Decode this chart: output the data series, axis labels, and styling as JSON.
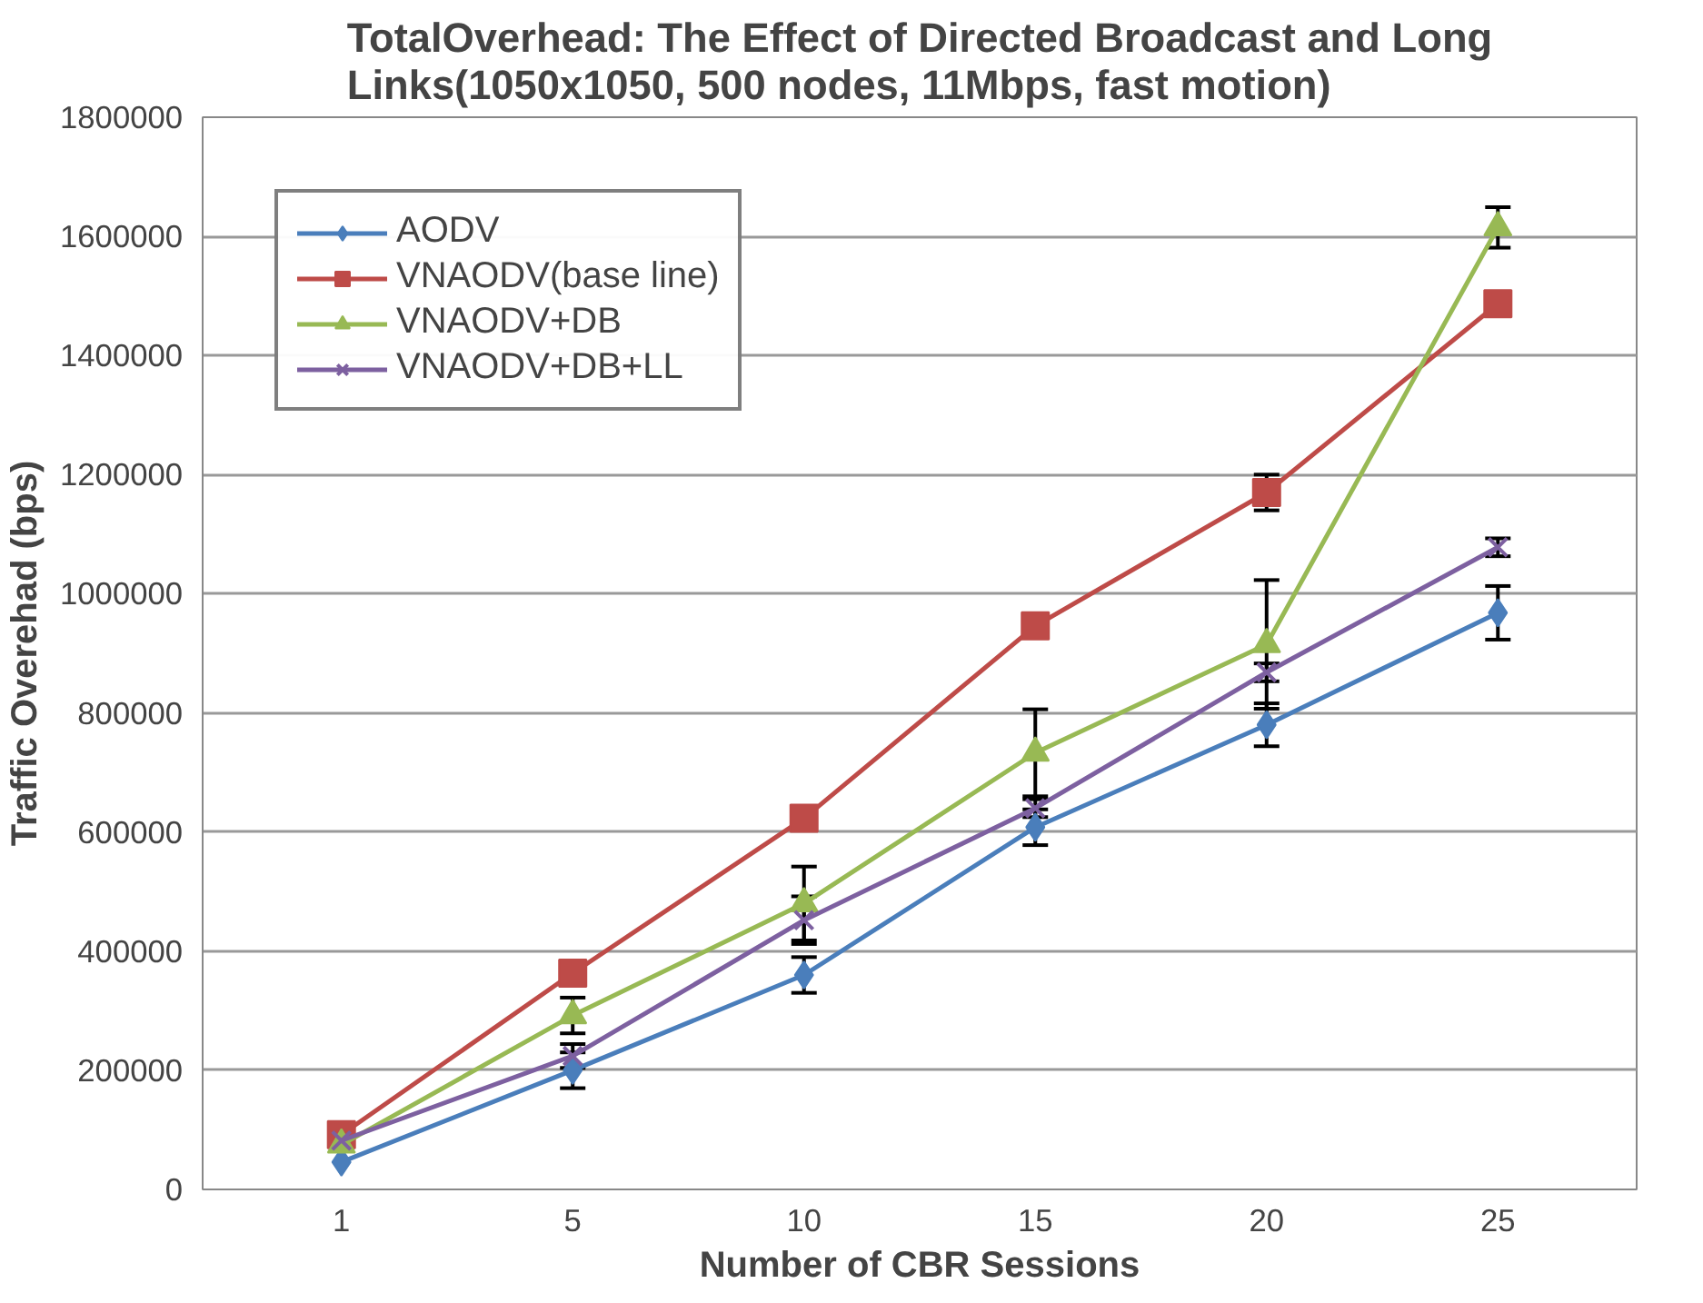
{
  "chart_data": {
    "type": "line",
    "title": "TotalOverhead: The Effect of Directed Broadcast and Long\nLinks(1050x1050, 500 nodes, 11Mbps, fast motion)",
    "xlabel": "Number of CBR Sessions",
    "ylabel": "Traffic Overehad (bps)",
    "categories": [
      "1",
      "5",
      "10",
      "15",
      "20",
      "25"
    ],
    "ylim": [
      0,
      1800000
    ],
    "yticks": [
      0,
      200000,
      400000,
      600000,
      800000,
      1000000,
      1200000,
      1400000,
      1600000,
      1800000
    ],
    "grid": "y",
    "legend": "top left",
    "series": [
      {
        "name": "AODV",
        "color": "#4a7ebb",
        "marker": "diamond",
        "values": [
          46000,
          200000,
          360000,
          608000,
          780000,
          968000
        ],
        "errors": [
          null,
          30000,
          30000,
          30000,
          36000,
          45000
        ]
      },
      {
        "name": "VNAODV(base line)",
        "color": "#be4b48",
        "marker": "square",
        "values": [
          92000,
          363000,
          623000,
          946000,
          1170000,
          1487000
        ],
        "errors": [
          null,
          null,
          null,
          null,
          30000,
          null
        ]
      },
      {
        "name": "VNAODV+DB",
        "color": "#98b954",
        "marker": "triangle",
        "values": [
          75000,
          292000,
          480000,
          733000,
          915000,
          1615000
        ],
        "errors": [
          null,
          30000,
          62000,
          73000,
          108000,
          34000
        ]
      },
      {
        "name": "VNAODV+DB+LL",
        "color": "#7d60a0",
        "marker": "x",
        "values": [
          82000,
          224000,
          452000,
          640000,
          868000,
          1078000
        ],
        "errors": [
          null,
          20000,
          40000,
          15000,
          15000,
          15000
        ]
      }
    ]
  }
}
